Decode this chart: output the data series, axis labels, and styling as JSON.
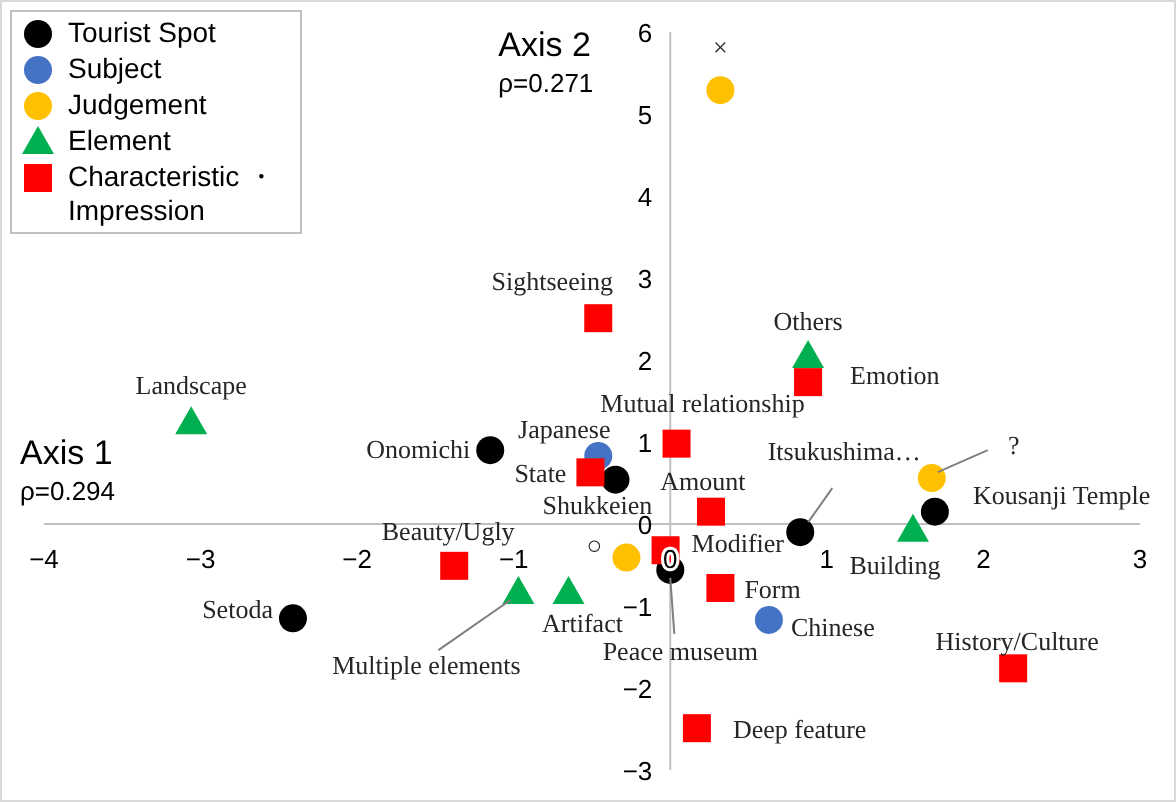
{
  "chart_data": {
    "type": "scatter",
    "xlabel": "Axis 1\nρ=0.294",
    "ylabel": "Axis 2\nρ=0.271",
    "xlim": [
      -4,
      3
    ],
    "ylim": [
      -3,
      6
    ],
    "xticks": [
      -4,
      -3,
      -2,
      -1,
      0,
      1,
      2,
      3
    ],
    "yticks": [
      -3,
      -2,
      -1,
      0,
      1,
      2,
      3,
      4,
      5,
      6
    ],
    "grid": false,
    "legend": "top left",
    "series": [
      {
        "name": "Tourist Spot",
        "color": "#000000",
        "marker": "circle",
        "x": [
          -1.15,
          -2.41,
          -0.35,
          0,
          0.83,
          1.69
        ],
        "values": [
          0.9,
          -1.15,
          0.54,
          -0.56,
          -0.1,
          0.15
        ]
      },
      {
        "name": "Subject",
        "color": "#4472c4",
        "marker": "circle",
        "x": [
          -0.46,
          0.63
        ],
        "values": [
          0.83,
          -1.17
        ]
      },
      {
        "name": "Judgement",
        "color": "#ffc000",
        "marker": "circle",
        "x": [
          0.32,
          1.67,
          -0.28
        ],
        "values": [
          5.29,
          0.56,
          -0.41
        ]
      },
      {
        "name": "Element",
        "color": "#00b050",
        "marker": "triangle",
        "x": [
          -3.06,
          0.88,
          -0.97,
          -0.65,
          1.55
        ],
        "values": [
          1.24,
          2.05,
          -0.83,
          -0.83,
          -0.07
        ]
      },
      {
        "name": "Characteristic ・ Impression",
        "color": "#ff0000",
        "marker": "square",
        "x": [
          -0.46,
          0.88,
          0.04,
          -0.51,
          0.26,
          -0.03,
          0.32,
          -1.38,
          0.17,
          2.19
        ],
        "values": [
          2.51,
          1.73,
          0.98,
          0.63,
          0.15,
          -0.32,
          -0.78,
          -0.51,
          -2.49,
          -1.76
        ]
      }
    ],
    "annotations": [
      {
        "text": "Onomichi",
        "x": -1.15,
        "y": 0.9
      },
      {
        "text": "Setoda",
        "x": -2.41,
        "y": -1.15
      },
      {
        "text": "Shukkeien",
        "x": -0.35,
        "y": 0.54
      },
      {
        "text": "Peace museum",
        "x": 0,
        "y": -0.56
      },
      {
        "text": "Itsukushima…",
        "x": 0.83,
        "y": -0.1
      },
      {
        "text": "Kousanji Temple",
        "x": 1.69,
        "y": 0.15
      },
      {
        "text": "Japanese",
        "x": -0.46,
        "y": 0.83
      },
      {
        "text": "Chinese",
        "x": 0.63,
        "y": -1.17
      },
      {
        "text": "×",
        "x": 0.32,
        "y": 5.29
      },
      {
        "text": "?",
        "x": 1.67,
        "y": 0.56
      },
      {
        "text": "○",
        "x": -0.28,
        "y": -0.41
      },
      {
        "text": "Landscape",
        "x": -3.06,
        "y": 1.24
      },
      {
        "text": "Others",
        "x": 0.88,
        "y": 2.05
      },
      {
        "text": "Multiple elements",
        "x": -0.97,
        "y": -0.83
      },
      {
        "text": "Artifact",
        "x": -0.65,
        "y": -0.83
      },
      {
        "text": "Building",
        "x": 1.55,
        "y": -0.07
      },
      {
        "text": "Sightseeing",
        "x": -0.46,
        "y": 2.51
      },
      {
        "text": "Emotion",
        "x": 0.88,
        "y": 1.73
      },
      {
        "text": "Mutual relationship",
        "x": 0.04,
        "y": 0.98
      },
      {
        "text": "State",
        "x": -0.51,
        "y": 0.63
      },
      {
        "text": "Amount",
        "x": 0.26,
        "y": 0.15
      },
      {
        "text": "Modifier",
        "x": -0.03,
        "y": -0.32
      },
      {
        "text": "Form",
        "x": 0.32,
        "y": -0.78
      },
      {
        "text": "Beauty/Ugly",
        "x": -1.38,
        "y": -0.51
      },
      {
        "text": "Deep feature",
        "x": 0.17,
        "y": -2.49
      },
      {
        "text": "History/Culture",
        "x": 2.19,
        "y": -1.76
      }
    ]
  }
}
